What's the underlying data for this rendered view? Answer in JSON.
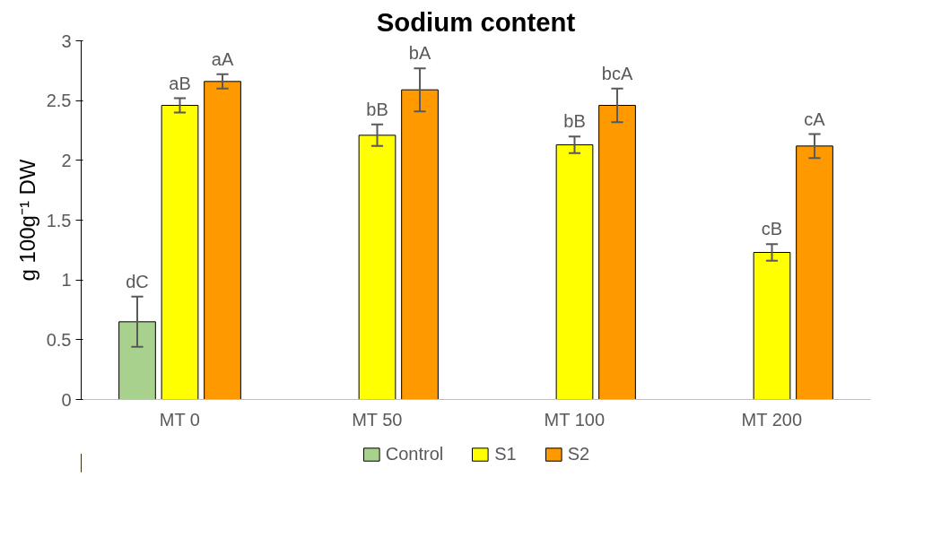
{
  "chart_data": {
    "type": "bar",
    "title": "Sodium content",
    "ylabel": "g 100g⁻¹ DW",
    "categories": [
      "MT 0",
      "MT 50",
      "MT 100",
      "MT 200"
    ],
    "series": [
      {
        "name": "Control",
        "color": "#a9d18e",
        "values": [
          0.65,
          null,
          null,
          null
        ],
        "errors": [
          0.21,
          null,
          null,
          null
        ],
        "value_labels": [
          "dC",
          null,
          null,
          null
        ]
      },
      {
        "name": "S1",
        "color": "#ffff00",
        "values": [
          2.46,
          2.21,
          2.13,
          1.23
        ],
        "errors": [
          0.06,
          0.09,
          0.07,
          0.07
        ],
        "value_labels": [
          "aB",
          "bB",
          "bB",
          "cB"
        ]
      },
      {
        "name": "S2",
        "color": "#ff9900",
        "values": [
          2.66,
          2.59,
          2.46,
          2.12
        ],
        "errors": [
          0.06,
          0.18,
          0.14,
          0.1
        ],
        "value_labels": [
          "aA",
          "bA",
          "bcA",
          "cA"
        ]
      }
    ],
    "ylim": [
      0,
      3
    ],
    "yticks": [
      0,
      0.5,
      1,
      1.5,
      2,
      2.5,
      3
    ],
    "grid": false,
    "legend": "bottom"
  }
}
